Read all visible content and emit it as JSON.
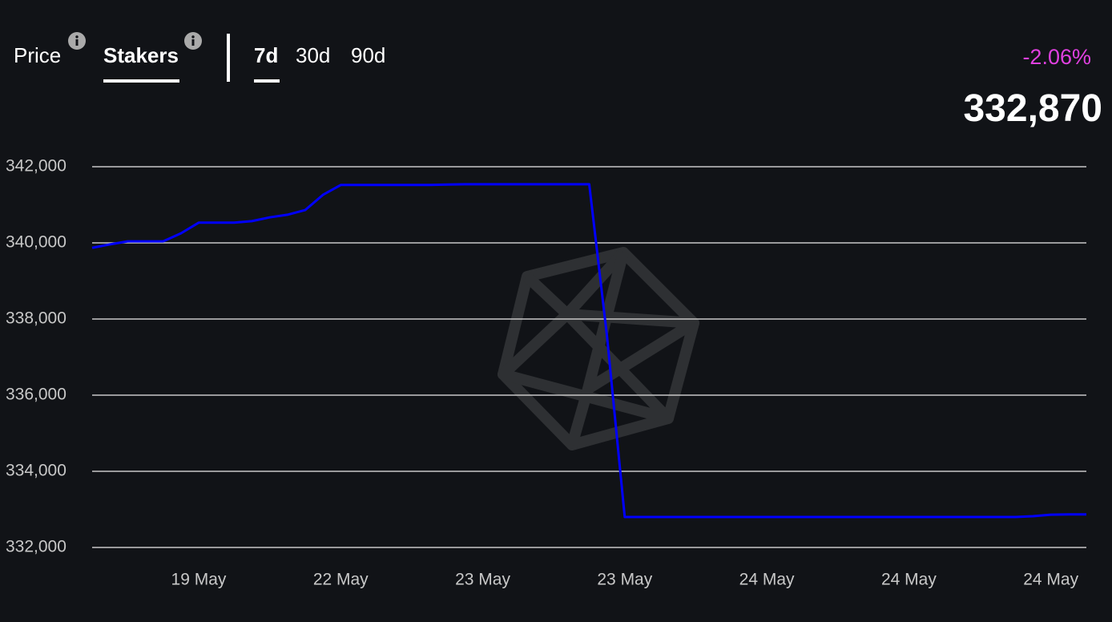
{
  "tabs": [
    "Price",
    "Stakers"
  ],
  "periods": [
    "7d",
    "30d",
    "90d"
  ],
  "change": "-2.06%",
  "current_value": "332,870",
  "chart_data": {
    "type": "line",
    "categories": [
      null,
      null,
      null,
      null,
      null,
      null,
      "19 May",
      null,
      null,
      null,
      null,
      null,
      null,
      null,
      "22 May",
      null,
      null,
      null,
      null,
      null,
      null,
      null,
      "23 May",
      null,
      null,
      null,
      null,
      null,
      null,
      null,
      "23 May",
      null,
      null,
      null,
      null,
      null,
      null,
      null,
      "24 May",
      null,
      null,
      null,
      null,
      null,
      null,
      null,
      "24 May",
      null,
      null,
      null,
      null,
      null,
      null,
      null,
      "24 May",
      null,
      null
    ],
    "series": [
      {
        "name": "Stakers",
        "color": "#0000ff",
        "values": [
          339870,
          339960,
          340040,
          340040,
          340040,
          340250,
          340530,
          340530,
          340530,
          340570,
          340670,
          340740,
          340860,
          341260,
          341520,
          341520,
          341520,
          341520,
          341520,
          341520,
          341530,
          341540,
          341540,
          341540,
          341540,
          341540,
          341540,
          341540,
          341540,
          337540,
          332800,
          332800,
          332800,
          332800,
          332800,
          332800,
          332800,
          332800,
          332800,
          332800,
          332800,
          332800,
          332800,
          332800,
          332800,
          332800,
          332800,
          332800,
          332800,
          332800,
          332800,
          332800,
          332800,
          332820,
          332860,
          332870,
          332870
        ]
      }
    ],
    "ylim": [
      332000,
      342000
    ],
    "yticks": [
      {
        "value": 332000,
        "label": "332,000"
      },
      {
        "value": 334000,
        "label": "334,000"
      },
      {
        "value": 336000,
        "label": "336,000"
      },
      {
        "value": 338000,
        "label": "338,000"
      },
      {
        "value": 340000,
        "label": "340,000"
      },
      {
        "value": 342000,
        "label": "342,000"
      }
    ],
    "grid": true
  }
}
